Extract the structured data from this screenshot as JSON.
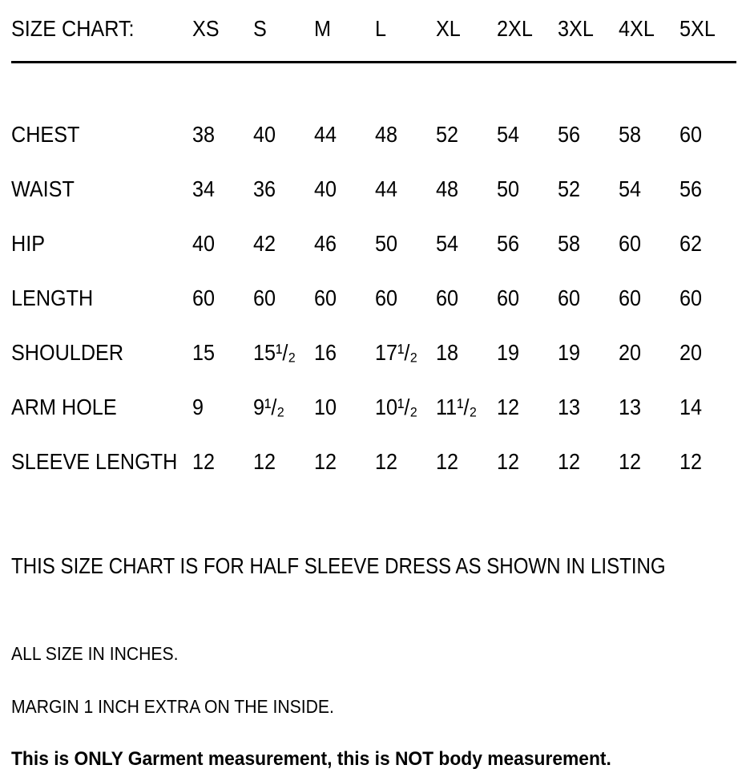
{
  "table": {
    "title": "SIZE CHART:",
    "sizes": [
      "XS",
      "S",
      "M",
      "L",
      "XL",
      "2XL",
      "3XL",
      "4XL",
      "5XL"
    ],
    "rows": [
      {
        "label": "CHEST",
        "values": [
          "38",
          "40",
          "44",
          "48",
          "52",
          "54",
          "56",
          "58",
          "60"
        ]
      },
      {
        "label": "WAIST",
        "values": [
          "34",
          "36",
          "40",
          "44",
          "48",
          "50",
          "52",
          "54",
          "56"
        ]
      },
      {
        "label": "HIP",
        "values": [
          "40",
          "42",
          "46",
          "50",
          "54",
          "56",
          "58",
          "60",
          "62"
        ]
      },
      {
        "label": "LENGTH",
        "values": [
          "60",
          "60",
          "60",
          "60",
          "60",
          "60",
          "60",
          "60",
          "60"
        ]
      },
      {
        "label": "SHOULDER",
        "values": [
          "15",
          "15¹/₂",
          "16",
          "17¹/₂",
          "18",
          "19",
          "19",
          "20",
          "20"
        ]
      },
      {
        "label": "ARM HOLE",
        "values": [
          "9",
          "9¹/₂",
          "10",
          "10¹/₂",
          "11¹/₂",
          "12",
          "13",
          "13",
          "14"
        ]
      },
      {
        "label": "SLEEVE LENGTH",
        "values": [
          "12",
          "12",
          "12",
          "12",
          "12",
          "12",
          "12",
          "12",
          "12"
        ]
      }
    ]
  },
  "notes": {
    "heading": "THIS SIZE CHART IS FOR HALF SLEEVE DRESS AS SHOWN IN LISTING",
    "unit_note": "ALL SIZE IN INCHES.",
    "margin_note": "MARGIN 1 INCH EXTRA ON THE INSIDE.",
    "measurement_note": "This is ONLY Garment measurement, this is NOT body measurement."
  },
  "colors": {
    "text": "#000000",
    "background": "#ffffff",
    "divider": "#000000"
  }
}
